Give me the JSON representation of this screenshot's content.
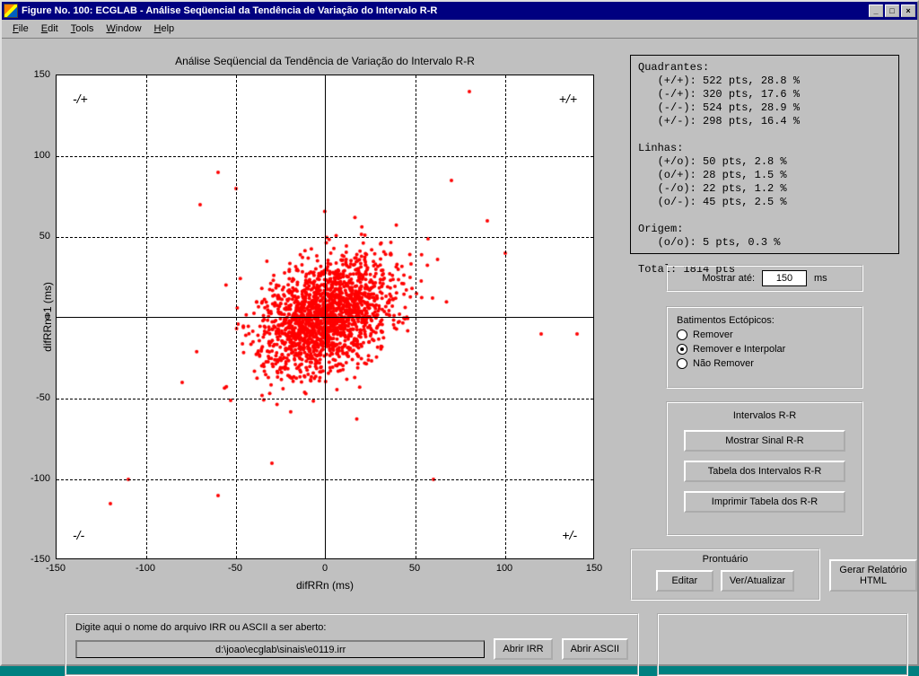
{
  "window": {
    "title": "Figure No. 100: ECGLAB - Análise Seqüencial da Tendência de Variação do Intervalo R-R"
  },
  "menu": {
    "file": "File",
    "edit": "Edit",
    "tools": "Tools",
    "window": "Window",
    "help": "Help",
    "u": {
      "file": "F",
      "edit": "E",
      "tools": "T",
      "window": "W",
      "help": "H"
    }
  },
  "chart": {
    "type": "scatter",
    "title": "Análise Seqüencial da Tendência de Variação do Intervalo R-R",
    "xlabel": "difRRn (ms)",
    "ylabel": "difRRn+1 (ms)",
    "xlim": [
      -150,
      150
    ],
    "ylim": [
      -150,
      150
    ],
    "ticks": [
      -150,
      -100,
      -50,
      0,
      50,
      100,
      150
    ],
    "marker_color": "#ff0000",
    "marker_size": 2.0,
    "background_color": "#ffffff",
    "grid_style": "dashed",
    "grid_color": "#000000",
    "n_points": 1814,
    "cluster_sigma": 18,
    "quad_labels": {
      "tl": "-/+",
      "tr": "+/+",
      "bl": "-/-",
      "br": "+/-"
    },
    "outliers": [
      [
        80,
        140
      ],
      [
        -60,
        90
      ],
      [
        -70,
        70
      ],
      [
        70,
        85
      ],
      [
        90,
        60
      ],
      [
        100,
        40
      ],
      [
        120,
        -10
      ],
      [
        140,
        -10
      ],
      [
        -110,
        -100
      ],
      [
        -120,
        -115
      ],
      [
        -80,
        -40
      ],
      [
        -60,
        -110
      ],
      [
        60,
        -100
      ],
      [
        -30,
        -90
      ],
      [
        -50,
        80
      ]
    ]
  },
  "stats": {
    "quadrantes_label": "Quadrantes:",
    "q_pp": "   (+/+): 522 pts, 28.8 %",
    "q_mp": "   (-/+): 320 pts, 17.6 %",
    "q_mm": "   (-/-): 524 pts, 28.9 %",
    "q_pm": "   (+/-): 298 pts, 16.4 %",
    "linhas_label": "Linhas:",
    "l_po": "   (+/o): 50 pts, 2.8 %",
    "l_op": "   (o/+): 28 pts, 1.5 %",
    "l_mo": "   (-/o): 22 pts, 1.2 %",
    "l_om": "   (o/-): 45 pts, 2.5 %",
    "origem_label": "Origem:",
    "origem": "   (o/o): 5 pts, 0.3 %",
    "total": "Total: 1814 pts"
  },
  "show": {
    "label_pre": "Mostrar até:",
    "value": "150",
    "label_post": "ms"
  },
  "ectopic": {
    "title": "Batimentos Ectópicos:",
    "opt1": "Remover",
    "opt2": "Remover e Interpolar",
    "opt3": "Não Remover",
    "selected": 2
  },
  "rr": {
    "title": "Intervalos R-R",
    "btn1": "Mostrar Sinal R-R",
    "btn2": "Tabela dos Intervalos R-R",
    "btn3": "Imprimir Tabela dos R-R"
  },
  "prontuario": {
    "title": "Prontuário",
    "editar": "Editar",
    "ver": "Ver/Atualizar"
  },
  "gerar": {
    "label": "Gerar Relatório HTML"
  },
  "file": {
    "label": "Digite aqui o nome do arquivo IRR ou ASCII a ser aberto:",
    "path": "d:\\joao\\ecglab\\sinais\\e0119.irr",
    "btn_irr": "Abrir IRR",
    "btn_ascii": "Abrir ASCII"
  },
  "winbtns": {
    "min": "_",
    "max": "□",
    "close": "×"
  },
  "colors": {
    "window_bg": "#c0c0c0",
    "titlebar": "#000080",
    "scatter": "#ff0000"
  }
}
